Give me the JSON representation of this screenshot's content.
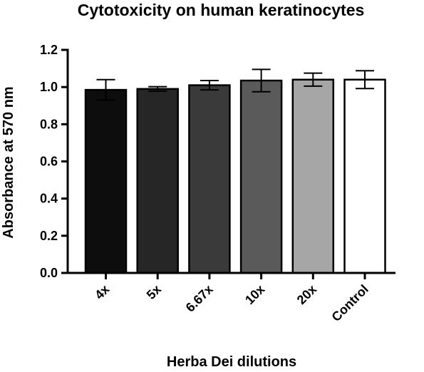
{
  "chart_data": {
    "type": "bar",
    "title": "Cytotoxicity on human keratinocytes",
    "xlabel": "Herba Dei dilutions",
    "ylabel": "Absorbance at 570 nm",
    "ylim": [
      0,
      1.2
    ],
    "yticks": [
      "0.0",
      "0.2",
      "0.4",
      "0.6",
      "0.8",
      "1.0",
      "1.2"
    ],
    "grid": false,
    "categories": [
      "4x",
      "5x",
      "6.67x",
      "10x",
      "20x",
      "Control"
    ],
    "values": [
      0.985,
      0.99,
      1.01,
      1.035,
      1.04,
      1.04
    ],
    "errors": [
      0.055,
      0.012,
      0.025,
      0.06,
      0.035,
      0.048
    ],
    "colors": [
      "#0d0d0d",
      "#262626",
      "#3a3a3a",
      "#5a5a5a",
      "#a6a6a6",
      "#ffffff"
    ]
  }
}
